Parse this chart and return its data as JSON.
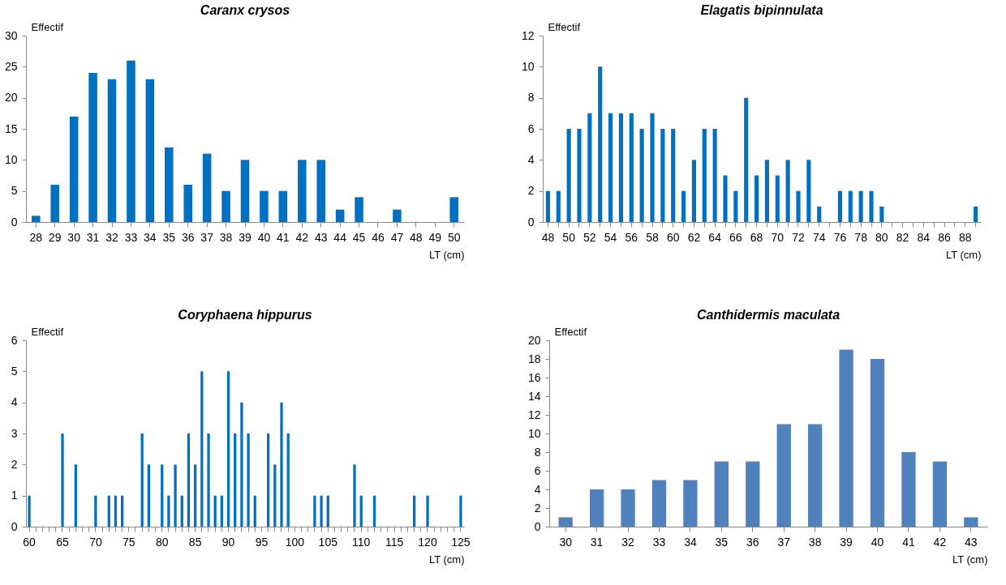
{
  "chart_data": [
    {
      "type": "bar",
      "title": "Caranx crysos",
      "xlabel": "LT (cm)",
      "ylabel": "Effectif",
      "color": "#0070c0",
      "ylim": [
        0,
        30
      ],
      "yticks": [
        0,
        5,
        10,
        15,
        20,
        25,
        30
      ],
      "categories": [
        "28",
        "29",
        "30",
        "31",
        "32",
        "33",
        "34",
        "35",
        "36",
        "37",
        "38",
        "39",
        "40",
        "41",
        "42",
        "43",
        "44",
        "45",
        "46",
        "47",
        "48",
        "49",
        "50"
      ],
      "values": [
        1,
        6,
        17,
        24,
        23,
        26,
        23,
        12,
        6,
        11,
        5,
        10,
        5,
        5,
        10,
        10,
        2,
        4,
        0,
        2,
        0,
        0,
        4
      ]
    },
    {
      "type": "bar",
      "title": "Elagatis bipinnulata",
      "xlabel": "LT (cm)",
      "ylabel": "Effectif",
      "color": "#0070c0",
      "ylim": [
        0,
        12
      ],
      "yticks": [
        0,
        2,
        4,
        6,
        8,
        10,
        12
      ],
      "categories": [
        "48",
        null,
        "50",
        null,
        "52",
        null,
        "54",
        null,
        "56",
        null,
        "58",
        null,
        "60",
        null,
        "62",
        null,
        "64",
        null,
        "66",
        null,
        "68",
        null,
        "70",
        null,
        "72",
        null,
        "74",
        null,
        "76",
        null,
        "78",
        null,
        "80",
        null,
        "82",
        null,
        "84",
        null,
        "86",
        null,
        "88",
        null
      ],
      "values": [
        2,
        2,
        6,
        6,
        7,
        10,
        7,
        7,
        7,
        6,
        7,
        6,
        6,
        2,
        4,
        6,
        6,
        3,
        2,
        8,
        3,
        4,
        3,
        4,
        2,
        4,
        1,
        0,
        2,
        2,
        2,
        2,
        1,
        0,
        0,
        0,
        0,
        0,
        0,
        0,
        0,
        1
      ]
    },
    {
      "type": "bar",
      "title": "Coryphaena hippurus",
      "xlabel": "LT (cm)",
      "ylabel": "Effectif",
      "color": "#0070c0",
      "ylim": [
        0,
        6
      ],
      "yticks": [
        0,
        1,
        2,
        3,
        4,
        5,
        6
      ],
      "categories": [
        "60",
        null,
        null,
        null,
        null,
        "65",
        null,
        null,
        null,
        null,
        "70",
        null,
        null,
        null,
        null,
        "75",
        null,
        null,
        null,
        null,
        "80",
        null,
        null,
        null,
        null,
        "85",
        null,
        null,
        null,
        null,
        "90",
        null,
        null,
        null,
        null,
        "95",
        null,
        null,
        null,
        null,
        "100",
        null,
        null,
        null,
        null,
        "105",
        null,
        null,
        null,
        null,
        "110",
        null,
        null,
        null,
        null,
        "115",
        null,
        null,
        null,
        null,
        "120",
        null,
        null,
        null,
        null,
        "125"
      ],
      "values": [
        1,
        0,
        0,
        0,
        0,
        3,
        0,
        2,
        0,
        0,
        1,
        0,
        1,
        1,
        1,
        0,
        0,
        3,
        2,
        0,
        2,
        1,
        2,
        1,
        3,
        2,
        5,
        3,
        1,
        1,
        5,
        3,
        4,
        3,
        1,
        0,
        3,
        2,
        4,
        3,
        0,
        0,
        0,
        1,
        1,
        1,
        0,
        0,
        0,
        2,
        1,
        0,
        1,
        0,
        0,
        0,
        0,
        0,
        1,
        0,
        1,
        0,
        0,
        0,
        0,
        1
      ]
    },
    {
      "type": "bar",
      "title": "Canthidermis maculata",
      "xlabel": "LT (cm)",
      "ylabel": "Effectif",
      "color": "#4f81bd",
      "ylim": [
        0,
        20
      ],
      "yticks": [
        0,
        2,
        4,
        6,
        8,
        10,
        12,
        14,
        16,
        18,
        20
      ],
      "categories": [
        "30",
        "31",
        "32",
        "33",
        "34",
        "35",
        "36",
        "37",
        "38",
        "39",
        "40",
        "41",
        "42",
        "43"
      ],
      "values": [
        1,
        4,
        4,
        5,
        5,
        7,
        7,
        11,
        11,
        19,
        18,
        8,
        7,
        1
      ]
    }
  ]
}
